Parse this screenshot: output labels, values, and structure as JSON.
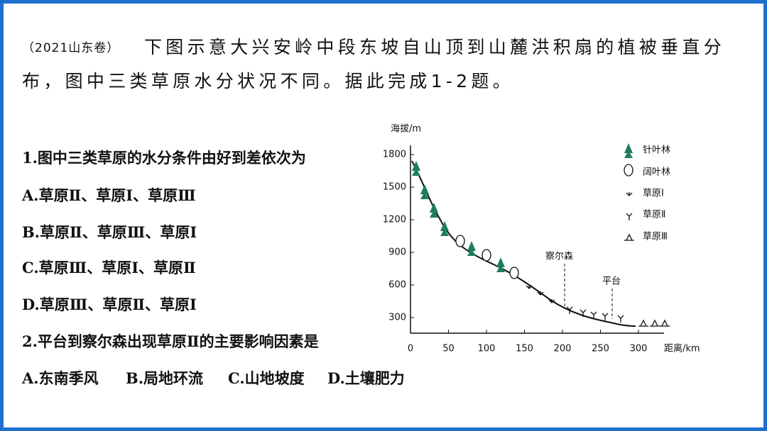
{
  "header": {
    "source": "（2021山东卷）",
    "line1": "下图示意大兴安岭中段东坡自山顶到山麓洪积扇的植被垂直分",
    "line2": "布，图中三类草原水分状况不同。据此完成1-2题。"
  },
  "questions": [
    {
      "stem": "1.图中三类草原的水分条件由好到差依次为",
      "options": [
        "A.草原Ⅱ、草原Ⅰ、草原Ⅲ",
        "B.草原Ⅱ、草原Ⅲ、草原Ⅰ",
        "C.草原Ⅲ、草原Ⅰ、草原Ⅱ",
        "D.草原Ⅲ、草原Ⅱ、草原Ⅰ"
      ]
    },
    {
      "stem": "2.平台到察尔森出现草原Ⅱ的主要影响因素是",
      "options": [
        "A.东南季风",
        "B.局地环流",
        "C.山地坡度",
        "D.土壤肥力"
      ]
    }
  ],
  "figure": {
    "y_label": "海拔/m",
    "x_label": "距离/km",
    "yticks": [
      300,
      600,
      900,
      1200,
      1500,
      1800
    ],
    "xticks": [
      0,
      50,
      100,
      150,
      200,
      250,
      300
    ],
    "legend": [
      "针叶林",
      "阔叶林",
      "草原Ⅰ",
      "草原Ⅱ",
      "草原Ⅲ"
    ],
    "annotations": [
      "察尔森",
      "平台"
    ]
  }
}
